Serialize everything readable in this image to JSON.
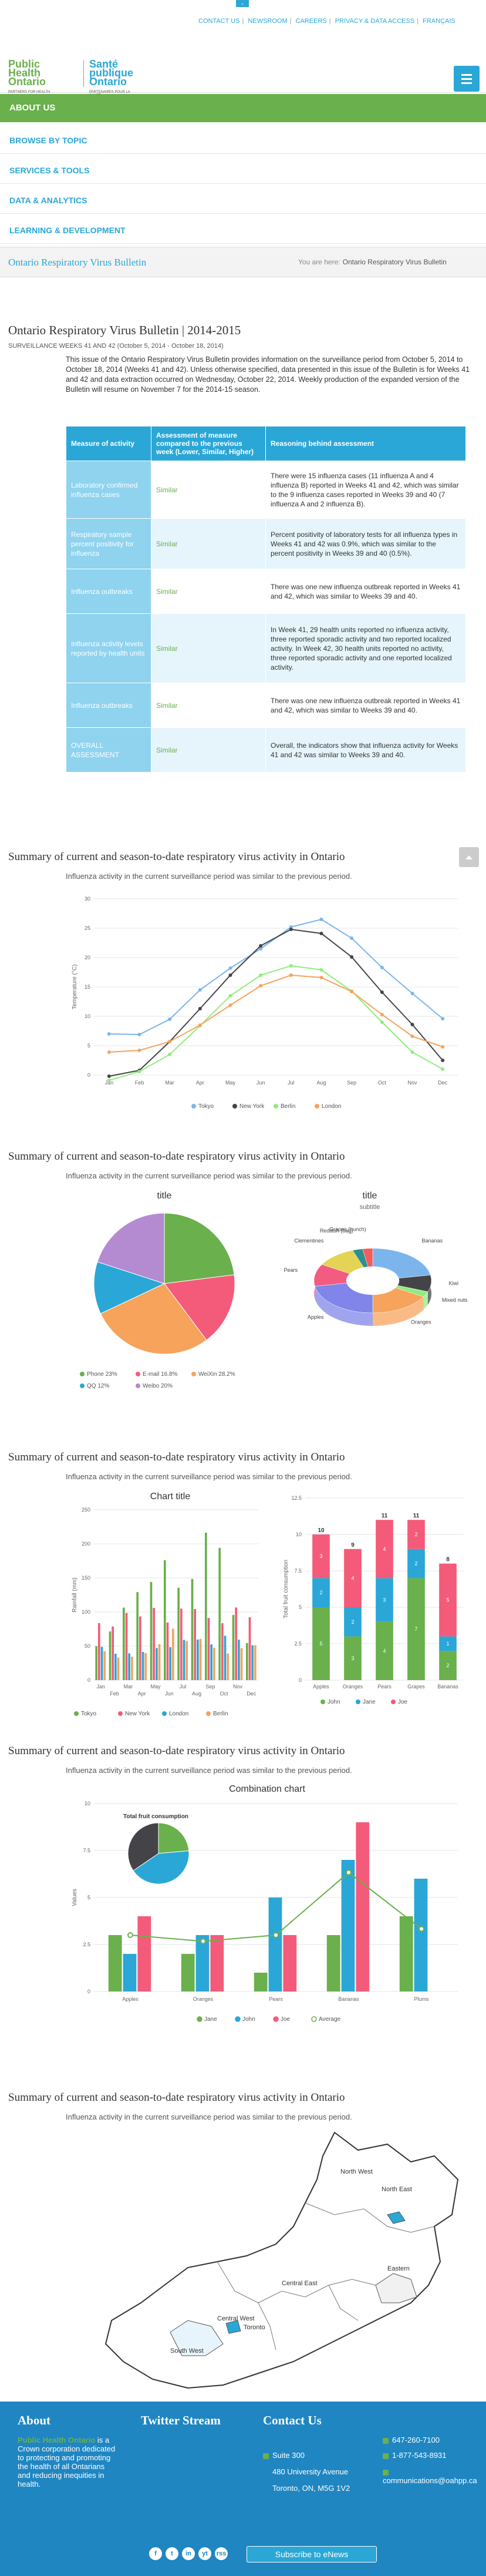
{
  "top": {
    "tab_glyph": "⌄",
    "links": [
      "CONTACT US",
      "NEWSROOM",
      "CAREERS",
      "PRIVACY & DATA ACCESS",
      "FRANÇAIS"
    ]
  },
  "logo": {
    "en_line1": "Public",
    "en_line2": "Health",
    "en_line3": "Ontario",
    "fr_line1": "Santé",
    "fr_line2": "publique",
    "fr_line3": "Ontario",
    "tag_en": "PARTNERS FOR HEALTH",
    "tag_fr": "PARTENAIRES POUR LA SANTÉ"
  },
  "nav": {
    "about": "ABOUT US",
    "items": [
      "BROWSE BY TOPIC",
      "SERVICES & TOOLS",
      "DATA & ANALYTICS",
      "LEARNING & DEVELOPMENT"
    ]
  },
  "breadcrumb": {
    "title": "Ontario Respiratory Virus Bulletin",
    "you_are_here": "You are here:",
    "current": "Ontario Respiratory Virus Bulletin"
  },
  "article": {
    "title": "Ontario Respiratory Virus Bulletin | 2014-2015",
    "subtitle": "SURVEILLANCE WEEKS 41 AND 42 (October 5, 2014 - October 18, 2014)",
    "intro": "This issue of the Ontario Respiratory Virus Bulletin provides information on the surveillance period from October 5, 2014 to October 18, 2014 (Weeks 41 and 42). Unless otherwise specified, data presented in this issue of the Bulletin is for Weeks 41 and 42 and data extraction occurred on Wednesday, October 22, 2014. Weekly production of the expanded version of the Bulletin will resume on November 7 for the 2014-15 season."
  },
  "table": {
    "headers": [
      "Measure of activity",
      "Assessment of measure compared to the previous week (Lower, Similar, Higher)",
      "Reasoning behind assessment"
    ],
    "rows": [
      [
        "Laboratory confirmed influenza cases",
        "Similar",
        "There were 15 influenza cases (11 influenza A and 4 influenza B) reported in Weeks 41 and 42, which was similar to the 9 influenza cases reported in Weeks 39 and 40 (7 influenza A and 2 influenza B)."
      ],
      [
        "Respiratory sample percent positivity for influenza",
        "Similar",
        "Percent positivity of laboratory tests for all influenza types in Weeks 41 and 42 was 0.9%, which was similar to the percent positivity in Weeks 39 and 40 (0.5%)."
      ],
      [
        "Influenza outbreaks",
        "Similar",
        "There was one new influenza outbreak reported in Weeks 41 and 42, which was similar to Weeks 39 and 40."
      ],
      [
        "Influenza activity levels reported by health units",
        "Similar",
        "In Week 41, 29 health units reported no influenza activity, three reported sporadic activity and two reported localized activity. In Week 42, 30 health units reported no activity, three reported sporadic activity and one reported localized activity."
      ],
      [
        "Influenza outbreaks",
        "Similar",
        "There was one new influenza outbreak reported in Weeks 41 and 42, which was similar to Weeks 39 and 40."
      ],
      [
        "OVERALL ASSESSMENT",
        "Similar",
        "Overall, the indicators show that influenza activity for Weeks 41 and 42 was similar to Weeks 39 and 40."
      ]
    ]
  },
  "sections": [
    {
      "title": "Summary of current and season-to-date respiratory virus activity in Ontario",
      "subtitle": "Influenza activity in the current surveillance period was similar to the previous period."
    },
    {
      "title": "Summary of current and season-to-date respiratory virus activity in Ontario",
      "subtitle": "Influenza activity in the current surveillance period was similar to the previous period."
    },
    {
      "title": "Summary of current and season-to-date respiratory virus activity in Ontario",
      "subtitle": "Influenza activity in the current surveillance period was similar to the previous period."
    },
    {
      "title": "Summary of current and season-to-date respiratory virus activity in Ontario",
      "subtitle": "Influenza activity in the current surveillance period was similar to the previous period."
    },
    {
      "title": "Summary of current and season-to-date respiratory virus activity in Ontario",
      "subtitle": "Influenza activity in the current surveillance period was similar to the previous period."
    }
  ],
  "chart_data": [
    {
      "type": "line",
      "title": "",
      "ylabel": "Temperature (°C)",
      "categories": [
        "Jan",
        "Feb",
        "Mar",
        "Apr",
        "May",
        "Jun",
        "Jul",
        "Aug",
        "Sep",
        "Oct",
        "Nov",
        "Dec"
      ],
      "ylim": [
        0,
        30
      ],
      "yticks": [
        0,
        5,
        10,
        15,
        20,
        25,
        30
      ],
      "series": [
        {
          "name": "Tokyo",
          "color": "#7cb5ec",
          "values": [
            7.0,
            6.9,
            9.5,
            14.5,
            18.2,
            21.5,
            25.2,
            26.5,
            23.3,
            18.3,
            13.9,
            9.6
          ]
        },
        {
          "name": "New York",
          "color": "#434348",
          "values": [
            -0.2,
            0.8,
            5.7,
            11.3,
            17.0,
            22.0,
            24.8,
            24.1,
            20.1,
            14.1,
            8.6,
            2.5
          ]
        },
        {
          "name": "Berlin",
          "color": "#90ed7d",
          "values": [
            -0.9,
            0.6,
            3.5,
            8.4,
            13.5,
            17.0,
            18.6,
            17.9,
            14.3,
            9.0,
            3.9,
            1.0
          ]
        },
        {
          "name": "London",
          "color": "#f7a35c",
          "values": [
            3.9,
            4.2,
            5.7,
            8.5,
            11.9,
            15.2,
            17.0,
            16.6,
            14.2,
            10.3,
            6.6,
            4.8
          ]
        }
      ],
      "grid": true,
      "legend": "bottom"
    },
    {
      "type": "pie",
      "title": "title",
      "slices": [
        {
          "name": "Phone",
          "value": 23,
          "label": "Phone 23%",
          "color": "#6ab04c"
        },
        {
          "name": "E-mail",
          "value": 16.8,
          "label": "E-mail 16.8%",
          "color": "#f45b7a"
        },
        {
          "name": "WeiXin",
          "value": 28.2,
          "label": "WeiXin 28.2%",
          "color": "#f7a35c"
        },
        {
          "name": "QQ",
          "value": 12,
          "label": "QQ 12%",
          "color": "#2aa7d6"
        },
        {
          "name": "Weibo",
          "value": 20,
          "label": "Weibo 20%",
          "color": "#b48ad1"
        }
      ],
      "legend": "bottom"
    },
    {
      "type": "pie",
      "title": "title",
      "subtitle": "subtitle",
      "slices": [
        {
          "name": "Bananas",
          "value": 8,
          "color": "#7cb5ec"
        },
        {
          "name": "Kiwi",
          "value": 3,
          "color": "#434348"
        },
        {
          "name": "Mixed nuts",
          "value": 1,
          "color": "#90ed7d"
        },
        {
          "name": "Oranges",
          "value": 6,
          "color": "#f7a35c"
        },
        {
          "name": "Apples",
          "value": 8,
          "color": "#8085e9"
        },
        {
          "name": "Pears",
          "value": 4,
          "color": "#f15c80"
        },
        {
          "name": "Clementines",
          "value": 4,
          "color": "#e4d354"
        },
        {
          "name": "Reddish (bag)",
          "value": 1,
          "color": "#2b908f"
        },
        {
          "name": "Grapes (bunch)",
          "value": 1,
          "color": "#f45b5b"
        }
      ]
    },
    {
      "type": "bar",
      "title": "Chart title",
      "ylabel": "Rainfall (mm)",
      "categories": [
        "Jan",
        "Feb",
        "Mar",
        "Apr",
        "May",
        "Jun",
        "Jul",
        "Aug",
        "Sep",
        "Oct",
        "Nov",
        "Dec"
      ],
      "ylim": [
        0,
        250
      ],
      "yticks": [
        0,
        50,
        100,
        150,
        200,
        250
      ],
      "series": [
        {
          "name": "Tokyo",
          "color": "#6ab04c",
          "values": [
            49.9,
            71.5,
            106.4,
            129.2,
            144.0,
            176.0,
            135.6,
            148.5,
            216.4,
            194.1,
            95.6,
            54.4
          ]
        },
        {
          "name": "New York",
          "color": "#f45b7a",
          "values": [
            83.6,
            78.8,
            98.5,
            93.4,
            106.0,
            84.5,
            105.0,
            104.3,
            91.2,
            83.5,
            106.6,
            92.3
          ]
        },
        {
          "name": "London",
          "color": "#2aa7d6",
          "values": [
            48.9,
            38.8,
            39.3,
            41.4,
            47.0,
            48.3,
            59.0,
            59.6,
            52.4,
            65.2,
            59.3,
            51.2
          ]
        },
        {
          "name": "Berlin",
          "color": "#f7a35c",
          "values": [
            42.4,
            33.2,
            34.5,
            39.7,
            52.6,
            75.5,
            57.4,
            60.4,
            47.6,
            39.1,
            46.8,
            51.1
          ]
        }
      ],
      "legend": "bottom"
    },
    {
      "type": "bar",
      "stacked": true,
      "title": "",
      "ylabel": "Total fruit consumption",
      "categories": [
        "Apples",
        "Oranges",
        "Pears",
        "Grapes",
        "Bananas"
      ],
      "ylim": [
        0,
        12.5
      ],
      "yticks": [
        0,
        2.5,
        5,
        7.5,
        10,
        12.5
      ],
      "totals": [
        10,
        9,
        11,
        11,
        8
      ],
      "series": [
        {
          "name": "John",
          "color": "#6ab04c",
          "values": [
            5,
            3,
            4,
            7,
            2
          ]
        },
        {
          "name": "Jane",
          "color": "#2aa7d6",
          "values": [
            2,
            2,
            3,
            2,
            1
          ]
        },
        {
          "name": "Joe",
          "color": "#f45b7a",
          "values": [
            3,
            4,
            4,
            2,
            5
          ]
        }
      ],
      "legend": "bottom"
    },
    {
      "type": "bar",
      "title": "Combination chart",
      "ylabel": "Values",
      "categories": [
        "Apples",
        "Oranges",
        "Pears",
        "Bananas",
        "Plums"
      ],
      "ylim": [
        0,
        10
      ],
      "yticks": [
        0,
        2.5,
        5,
        7.5,
        10
      ],
      "series": [
        {
          "name": "Jane",
          "color": "#6ab04c",
          "values": [
            3,
            2,
            1,
            3,
            4
          ]
        },
        {
          "name": "John",
          "color": "#2aa7d6",
          "values": [
            2,
            3,
            5,
            7,
            6
          ]
        },
        {
          "name": "Joe",
          "color": "#f45b7a",
          "values": [
            4,
            3,
            3,
            9,
            0
          ]
        },
        {
          "name": "Average",
          "type": "spline",
          "color": "#6ab04c",
          "values": [
            3,
            2.67,
            3,
            6.33,
            3.33
          ]
        }
      ],
      "inset_pie": {
        "title": "Total fruit consumption",
        "slices": [
          {
            "name": "Jane",
            "value": 13,
            "color": "#6ab04c"
          },
          {
            "name": "John",
            "value": 23,
            "color": "#2aa7d6"
          },
          {
            "name": "Joe",
            "value": 19,
            "color": "#434348"
          }
        ]
      },
      "legend": "bottom"
    }
  ],
  "map": {
    "labels": [
      "North West",
      "North East",
      "Central East",
      "Eastern",
      "Central West",
      "South West",
      "Toronto"
    ]
  },
  "footer": {
    "about_title": "About",
    "about_org": "Public Health Ontario",
    "about_text": "is a Crown corporation dedicated to protecting and promoting the health of all Ontarians and reducing inequities in health.",
    "twitter_title": "Twitter Stream",
    "contact_title": "Contact Us",
    "addr1": "Suite 300",
    "addr2": "480 University Avenue",
    "addr3": "Toronto, ON, M5G 1V2",
    "tel1": "647-260-7100",
    "tel2": "1-877-543-8931",
    "email": "communications@oahpp.ca",
    "social": [
      "f",
      "t",
      "in",
      "yt",
      "rss"
    ],
    "enews": "Subscribe to eNews"
  }
}
